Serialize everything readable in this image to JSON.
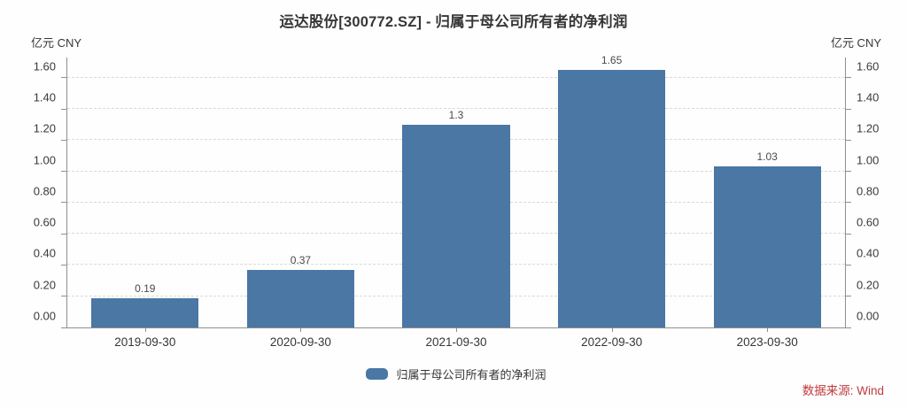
{
  "title": "运达股份[300772.SZ] - 归属于母公司所有者的净利润",
  "unit_left": "亿元  CNY",
  "unit_right": "亿元  CNY",
  "legend_label": "归属于母公司所有者的净利润",
  "source_label": "数据来源: Wind",
  "colors": {
    "bar": "#4a77a4",
    "source_text": "#c2393b",
    "grid": "#d9d9d9",
    "axis": "#8f8f8f",
    "title_text": "#363636",
    "tick_text": "#3a3a3a"
  },
  "chart_data": {
    "type": "bar",
    "categories": [
      "2019-09-30",
      "2020-09-30",
      "2021-09-30",
      "2022-09-30",
      "2023-09-30"
    ],
    "values": [
      0.19,
      0.37,
      1.3,
      1.65,
      1.03
    ],
    "value_labels": [
      "0.19",
      "0.37",
      "1.3",
      "1.65",
      "1.03"
    ],
    "title": "运达股份[300772.SZ] - 归属于母公司所有者的净利润",
    "xlabel": "",
    "ylabel": "亿元 CNY",
    "ylim": [
      0,
      1.6
    ],
    "ymax_render": 1.73,
    "yticks": [
      0,
      0.2,
      0.4,
      0.6,
      0.8,
      1.0,
      1.2,
      1.4,
      1.6
    ],
    "ytick_labels": [
      "0.00",
      "0.20",
      "0.40",
      "0.60",
      "0.80",
      "1.00",
      "1.20",
      "1.40",
      "1.60"
    ],
    "grid": true,
    "grid_style": "dashed",
    "legend_entries": [
      "归属于母公司所有者的净利润"
    ],
    "legend_position": "bottom",
    "series_color": "#4a77a4",
    "source": "数据来源: Wind"
  }
}
